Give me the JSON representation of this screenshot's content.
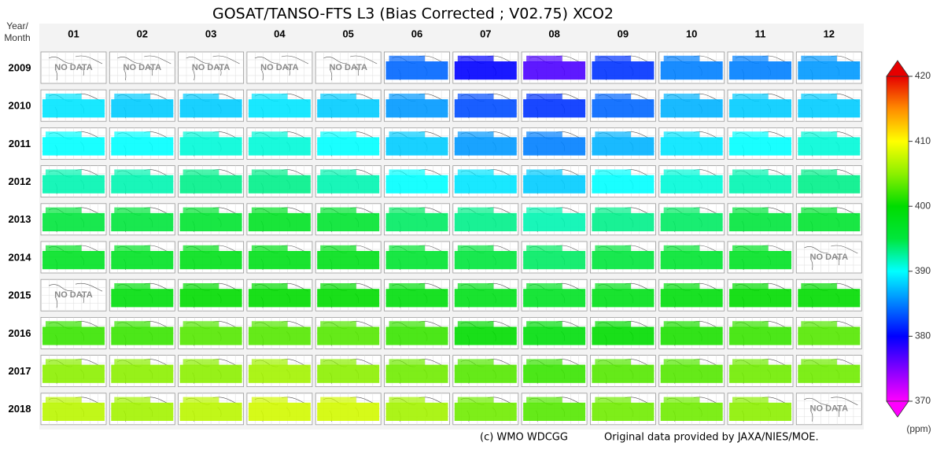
{
  "title": "GOSAT/TANSO-FTS L3 (Bias Corrected ; V02.75) XCO2",
  "corner_label": [
    "Year/",
    "Month"
  ],
  "months": [
    "01",
    "02",
    "03",
    "04",
    "05",
    "06",
    "07",
    "08",
    "09",
    "10",
    "11",
    "12"
  ],
  "years": [
    "2009",
    "2010",
    "2011",
    "2012",
    "2013",
    "2014",
    "2015",
    "2016",
    "2017",
    "2018"
  ],
  "no_data_label": "NO DATA",
  "cells": [
    [
      null,
      null,
      null,
      null,
      null,
      384,
      380,
      377,
      382,
      385,
      385,
      386
    ],
    [
      389,
      388,
      388,
      389,
      388,
      386,
      383,
      382,
      384,
      387,
      388,
      388
    ],
    [
      390,
      390,
      391,
      391,
      390,
      388,
      386,
      385,
      387,
      389,
      390,
      391
    ],
    [
      392,
      392,
      393,
      393,
      392,
      390,
      389,
      388,
      390,
      391,
      392,
      393
    ],
    [
      395,
      395,
      396,
      397,
      396,
      394,
      393,
      392,
      393,
      394,
      395,
      396
    ],
    [
      397,
      397,
      398,
      398,
      398,
      396,
      395,
      394,
      395,
      396,
      397,
      null
    ],
    [
      null,
      399,
      400,
      400,
      400,
      399,
      398,
      397,
      398,
      399,
      400,
      400
    ],
    [
      402,
      402,
      403,
      403,
      403,
      402,
      400,
      399,
      400,
      401,
      402,
      403
    ],
    [
      405,
      405,
      405,
      406,
      405,
      404,
      403,
      402,
      403,
      403,
      404,
      404
    ],
    [
      407,
      406,
      407,
      408,
      408,
      406,
      404,
      403,
      404,
      404,
      405,
      null
    ]
  ],
  "colorbar": {
    "min": 370,
    "max": 420,
    "ticks": [
      370,
      380,
      390,
      400,
      410,
      420
    ],
    "unit": "(ppm)"
  },
  "credit": "(c) WMO WDCGG",
  "source": "Original data provided by JAXA/NIES/MOE."
}
